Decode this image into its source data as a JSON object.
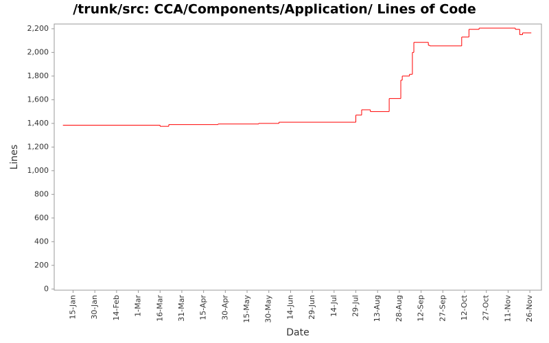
{
  "chart_data": {
    "type": "step",
    "title": "/trunk/src: CCA/Components/Application/ Lines of Code",
    "x_label": "Date",
    "y_label": "Lines",
    "x": [
      "8-Jan",
      "16-Mar",
      "22-Mar",
      "25-Apr",
      "23-May",
      "6-Jun",
      "29-Jul",
      "2-Aug",
      "8-Aug",
      "21-Aug",
      "29-Aug",
      "30-Aug",
      "4-Sep",
      "6-Sep",
      "7-Sep",
      "17-Sep",
      "18-Sep",
      "10-Oct",
      "15-Oct",
      "22-Oct",
      "16-Nov",
      "19-Nov",
      "21-Nov",
      "27-Nov"
    ],
    "series": [
      {
        "name": "Lines",
        "color": "#ff0000",
        "values": [
          1385,
          1375,
          1390,
          1395,
          1400,
          1410,
          1470,
          1515,
          1500,
          1610,
          1765,
          1800,
          1815,
          2000,
          2085,
          2060,
          2055,
          2130,
          2195,
          2205,
          2195,
          2150,
          2165,
          2165
        ]
      }
    ],
    "xlim": [
      "2-Jan",
      "4-Dec"
    ],
    "xticks": [
      "15-Jan",
      "30-Jan",
      "14-Feb",
      "1-Mar",
      "16-Mar",
      "31-Mar",
      "15-Apr",
      "30-Apr",
      "15-May",
      "30-May",
      "14-Jun",
      "29-Jun",
      "14-Jul",
      "29-Jul",
      "13-Aug",
      "28-Aug",
      "12-Sep",
      "27-Sep",
      "12-Oct",
      "27-Oct",
      "11-Nov",
      "26-Nov"
    ],
    "ylim": [
      -10,
      2240
    ],
    "yticks": [
      0,
      200,
      400,
      600,
      800,
      {
        "value": 1000,
        "label": "1,000"
      },
      {
        "value": 1200,
        "label": "1,200"
      },
      {
        "value": 1400,
        "label": "1,400"
      },
      {
        "value": 1600,
        "label": "1,600"
      },
      {
        "value": 1800,
        "label": "1,800"
      },
      {
        "value": 2000,
        "label": "2,000"
      },
      {
        "value": 2200,
        "label": "2,200"
      }
    ],
    "grid": false
  }
}
